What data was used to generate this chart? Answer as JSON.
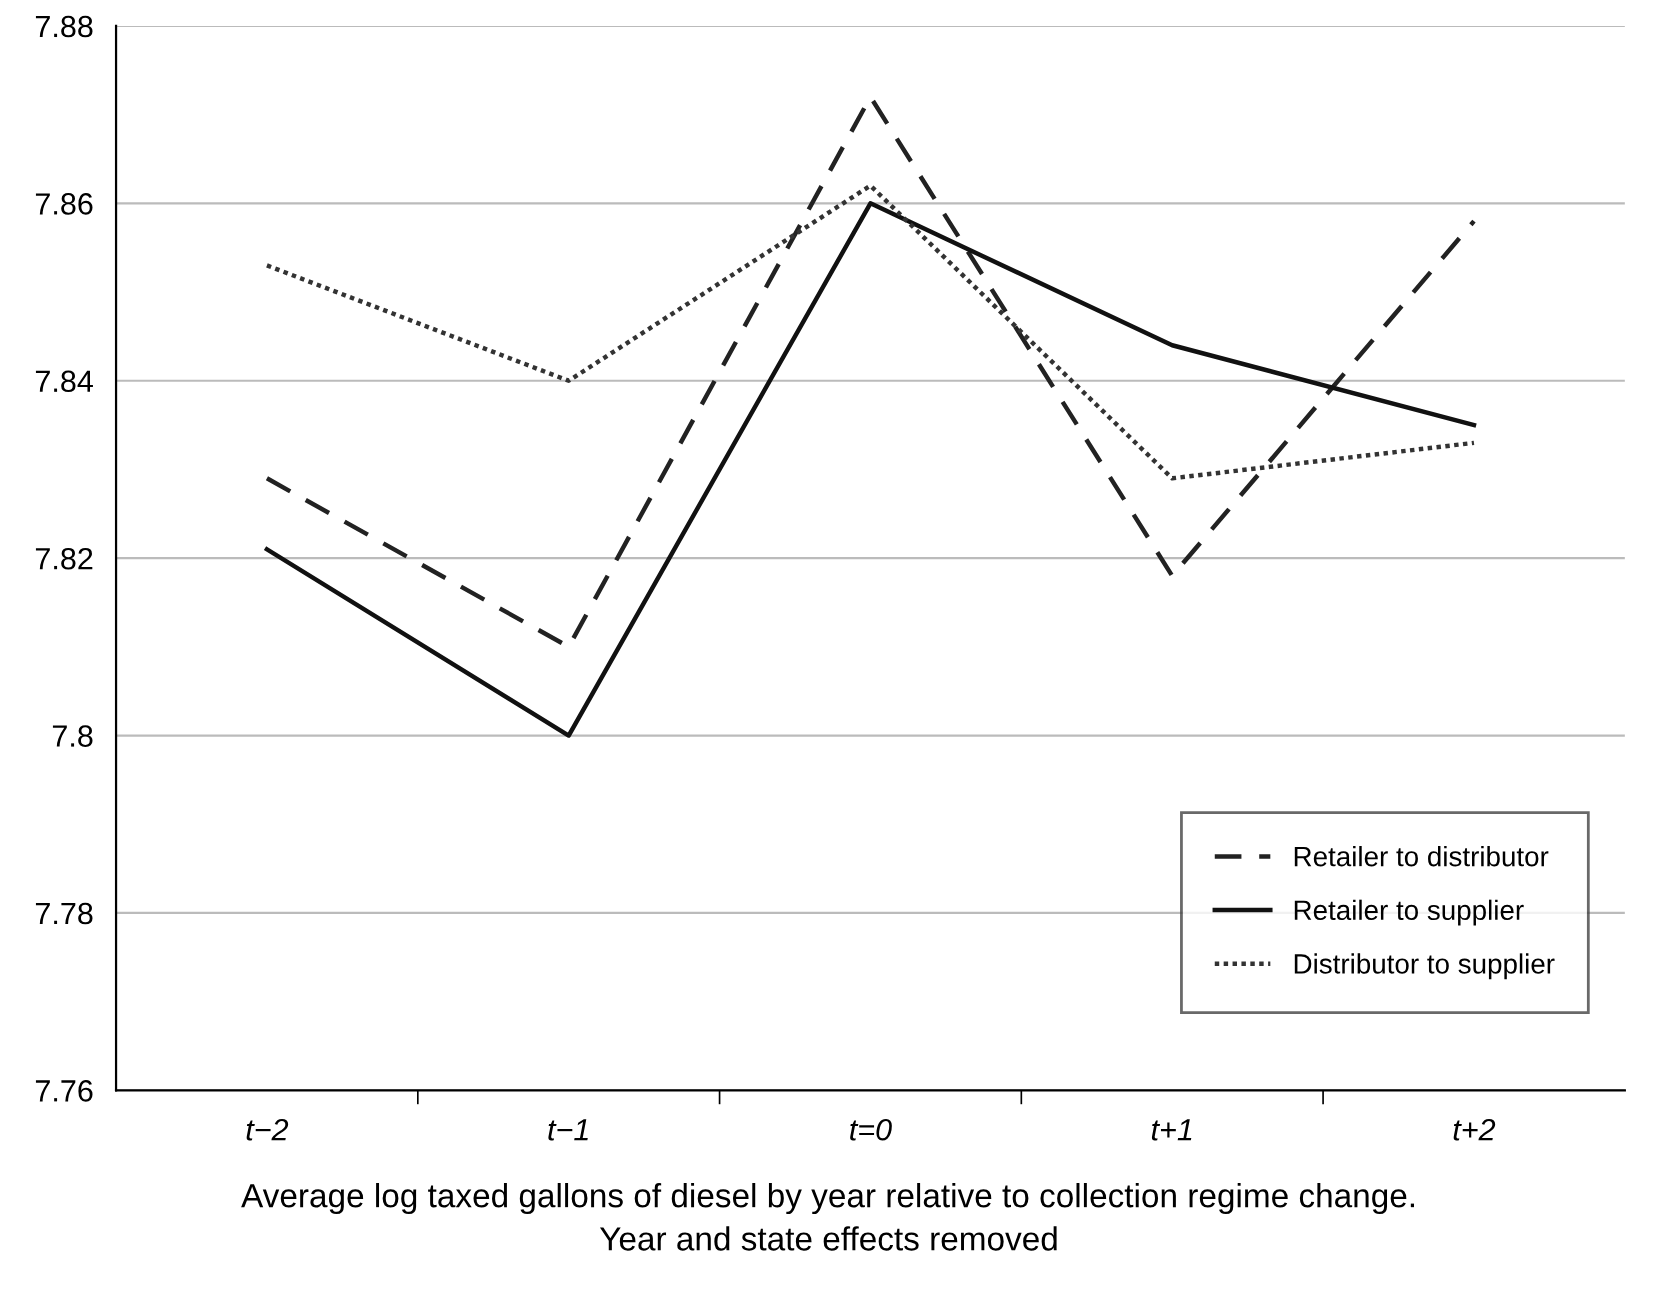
{
  "chart_data": {
    "type": "line",
    "categories": [
      "t−2",
      "t−1",
      "t=0",
      "t+1",
      "t+2"
    ],
    "series": [
      {
        "name": "Retailer to distributor",
        "color": "#222222",
        "line_style": "dashed",
        "values": [
          7.829,
          7.81,
          7.872,
          7.818,
          7.858
        ]
      },
      {
        "name": "Retailer to supplier",
        "color": "#111111",
        "line_style": "solid",
        "values": [
          7.821,
          7.8,
          7.86,
          7.844,
          7.835
        ]
      },
      {
        "name": "Distributor to supplier",
        "color": "#333333",
        "line_style": "dotted",
        "values": [
          7.853,
          7.84,
          7.862,
          7.829,
          7.833
        ]
      }
    ],
    "ylim": [
      7.76,
      7.88
    ],
    "yticks": [
      7.76,
      7.78,
      {
        "value": 7.8,
        "label": "7.8"
      },
      7.82,
      7.84,
      7.86,
      7.88
    ],
    "grid": "y",
    "legend": "bottom right",
    "marker": "none",
    "annotations": [
      "Average log taxed gallons of diesel by year relative to collection regime change.\nYear and state effects removed"
    ]
  }
}
